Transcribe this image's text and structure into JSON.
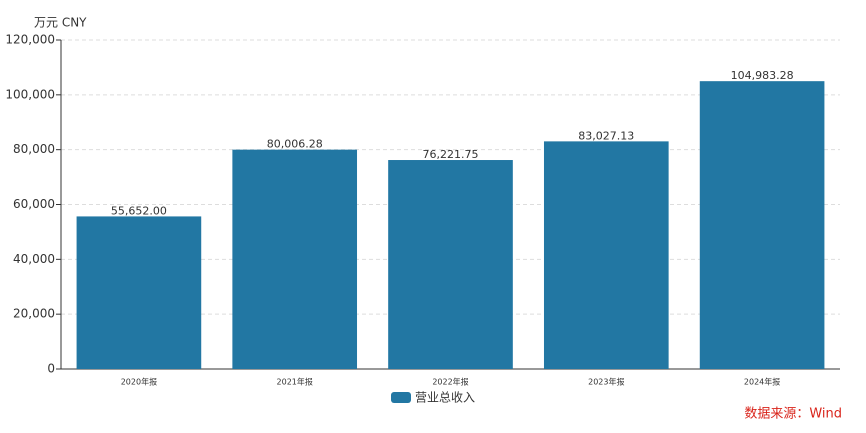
{
  "chart_data": {
    "type": "bar",
    "y_axis_label": "万元  CNY",
    "categories": [
      "2020年报",
      "2021年报",
      "2022年报",
      "2023年报",
      "2024年报"
    ],
    "series": [
      {
        "name": "营业总收入",
        "color": "#2277a3",
        "values": [
          55652.0,
          80006.28,
          76221.75,
          83027.13,
          104983.28
        ],
        "value_labels": [
          "55,652.00",
          "80,006.28",
          "76,221.75",
          "83,027.13",
          "104,983.28"
        ]
      }
    ],
    "ylim": [
      0,
      120000
    ],
    "yticks": [
      0,
      {
        "value": 20000,
        "label": "20,000"
      },
      {
        "value": 40000,
        "label": "40,000"
      },
      {
        "value": 60000,
        "label": "60,000"
      },
      {
        "value": 80000,
        "label": "80,000"
      },
      {
        "value": 100000,
        "label": "100,000"
      },
      {
        "value": 120000,
        "label": "120,000"
      }
    ],
    "grid": true,
    "legend": "bottom",
    "source": "数据来源：Wind"
  }
}
